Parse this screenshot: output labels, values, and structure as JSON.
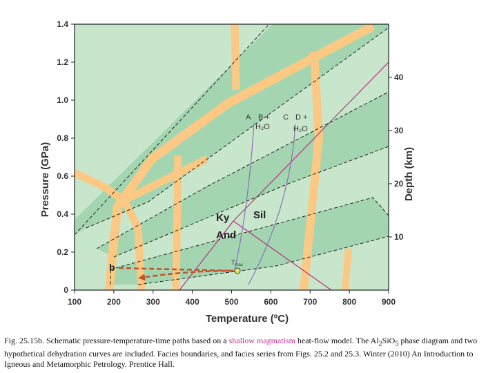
{
  "chart_data": {
    "type": "diagram",
    "xlabel": "Temperature (ºC)",
    "ylabel": "Pressure (GPa)",
    "y2label": "Depth (km)",
    "xlim": [
      100,
      900
    ],
    "ylim": [
      0,
      1.4
    ],
    "x_ticks": [
      "100",
      "200",
      "300",
      "400",
      "500",
      "600",
      "700",
      "800",
      "900"
    ],
    "y_ticks": [
      "0",
      "0.2",
      "0.4",
      "0.6",
      "0.8",
      "1.0",
      "1.2",
      "1.4"
    ],
    "depth_ticks": [
      "10",
      "20",
      "30",
      "40"
    ],
    "labels": {
      "ky": "Ky",
      "sil": "Sil",
      "and": "And",
      "curve_a": "A",
      "curve_b": "B +",
      "curve_b_h2o": "H₂O",
      "curve_c": "C",
      "curve_d": "D +",
      "curve_d_h2o": "H₂O",
      "tmax": "T",
      "tmax_sub": "max",
      "path_b": "b"
    },
    "colors": {
      "background": "#c8e6cc",
      "facies_band": "#a3d6b0",
      "dehydration_band": "#fcc984",
      "path": "#c0522a",
      "alsio_lines": "#b4307c",
      "dehydration_curves": "#8a6fb8"
    }
  },
  "caption": {
    "part1": "Fig. 25.15b. Schematic pressure-temperature-time paths based on a ",
    "highlight": "shallow magmatism",
    "part2": " heat-flow model. The Al",
    "sub1": "2",
    "part3": "SiO",
    "sub2": "5",
    "part4": " phase diagram and two hypothetical dehydration curves are included. Facies boundaries, and facies series from Figs. 25.2 and 25.3. Winter (2010) An Introduction to Igneous and Metamorphic Petrology. Prentice Hall."
  }
}
